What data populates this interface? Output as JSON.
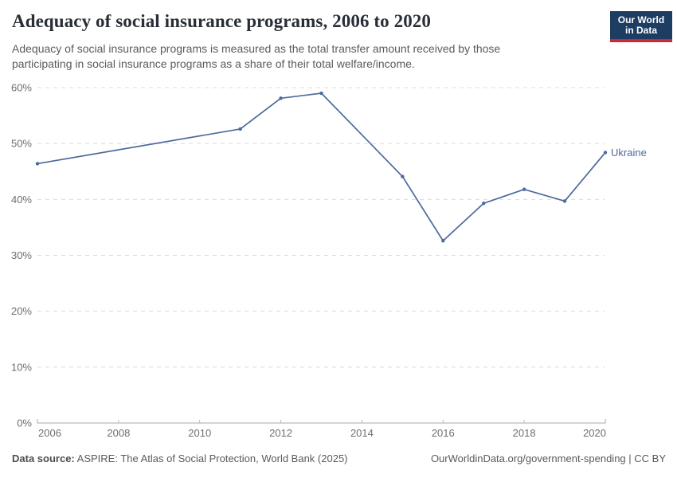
{
  "header": {
    "title": "Adequacy of social insurance programs, 2006 to 2020",
    "subtitle": "Adequacy of social insurance programs is measured as the total transfer amount received by those participating in social insurance programs as a share of their total welfare/income.",
    "logo": {
      "line1": "Our World",
      "line2": "in Data",
      "bg_color": "#1d3d63",
      "accent_color": "#cc2936"
    }
  },
  "chart_data": {
    "type": "line",
    "title": "Adequacy of social insurance programs, 2006 to 2020",
    "xlabel": "",
    "ylabel": "",
    "x": {
      "min": 2006,
      "max": 2020,
      "ticks": [
        2006,
        2008,
        2010,
        2012,
        2014,
        2016,
        2018,
        2020
      ]
    },
    "y": {
      "min": 0,
      "max": 60,
      "unit": "%",
      "ticks": [
        0,
        10,
        20,
        30,
        40,
        50,
        60
      ]
    },
    "grid": {
      "horizontal": true,
      "style": "dashed",
      "color": "#dcdcdc"
    },
    "axis_color": "#a8a8a8",
    "tick_label_color": "#6e6e6e",
    "legend": {
      "position": "end-of-line"
    },
    "series": [
      {
        "name": "Ukraine",
        "color": "#4c6a9c",
        "points": [
          {
            "year": 2006,
            "value": 46.4
          },
          {
            "year": 2011,
            "value": 52.6
          },
          {
            "year": 2012,
            "value": 58.1
          },
          {
            "year": 2013,
            "value": 59.0
          },
          {
            "year": 2015,
            "value": 44.1
          },
          {
            "year": 2016,
            "value": 32.6
          },
          {
            "year": 2017,
            "value": 39.3
          },
          {
            "year": 2018,
            "value": 41.8
          },
          {
            "year": 2019,
            "value": 39.7
          },
          {
            "year": 2020,
            "value": 48.4
          }
        ]
      }
    ]
  },
  "footer": {
    "source_label": "Data source:",
    "source_text": " ASPIRE: The Atlas of Social Protection, World Bank (2025)",
    "credit": "OurWorldinData.org/government-spending | CC BY"
  }
}
